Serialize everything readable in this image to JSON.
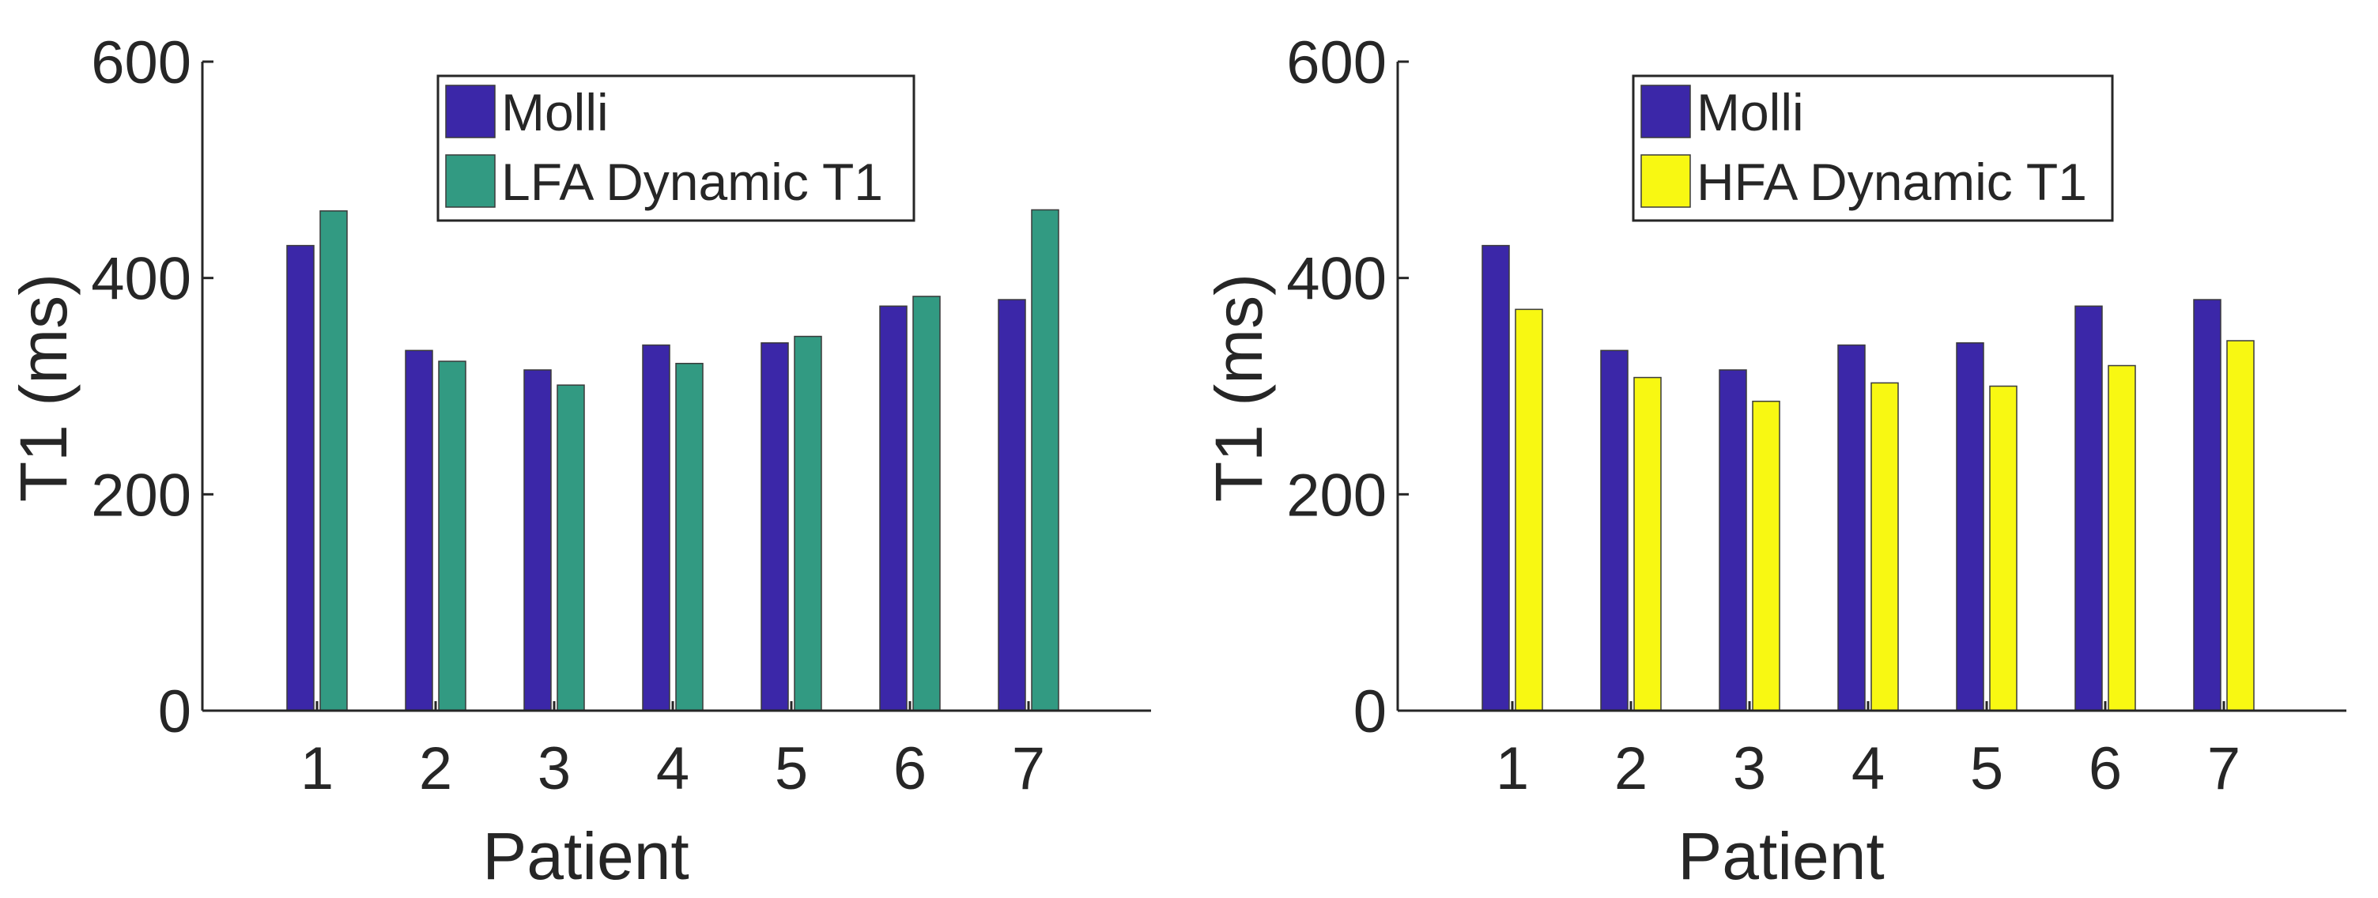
{
  "chart_data": [
    {
      "type": "bar",
      "title": "",
      "xlabel": "Patient",
      "ylabel": "T1 (ms)",
      "ylim": [
        0,
        600
      ],
      "yticks": [
        0,
        200,
        400,
        600
      ],
      "categories": [
        "1",
        "2",
        "3",
        "4",
        "5",
        "6",
        "7"
      ],
      "grid": false,
      "legend_position": "top-center",
      "series": [
        {
          "name": "Molli",
          "color": "#3b27a8",
          "values": [
            430,
            333,
            315,
            338,
            340,
            374,
            380
          ]
        },
        {
          "name": "LFA Dynamic T1",
          "color": "#329a82",
          "values": [
            462,
            323,
            301,
            321,
            346,
            383,
            463
          ]
        }
      ]
    },
    {
      "type": "bar",
      "title": "",
      "xlabel": "Patient",
      "ylabel": "T1 (ms)",
      "ylim": [
        0,
        600
      ],
      "yticks": [
        0,
        200,
        400,
        600
      ],
      "categories": [
        "1",
        "2",
        "3",
        "4",
        "5",
        "6",
        "7"
      ],
      "grid": false,
      "legend_position": "top-center",
      "series": [
        {
          "name": "Molli",
          "color": "#3b27a8",
          "values": [
            430,
            333,
            315,
            338,
            340,
            374,
            380
          ]
        },
        {
          "name": "HFA Dynamic T1",
          "color": "#f8f812",
          "values": [
            371,
            308,
            286,
            303,
            300,
            319,
            342
          ]
        }
      ]
    }
  ]
}
